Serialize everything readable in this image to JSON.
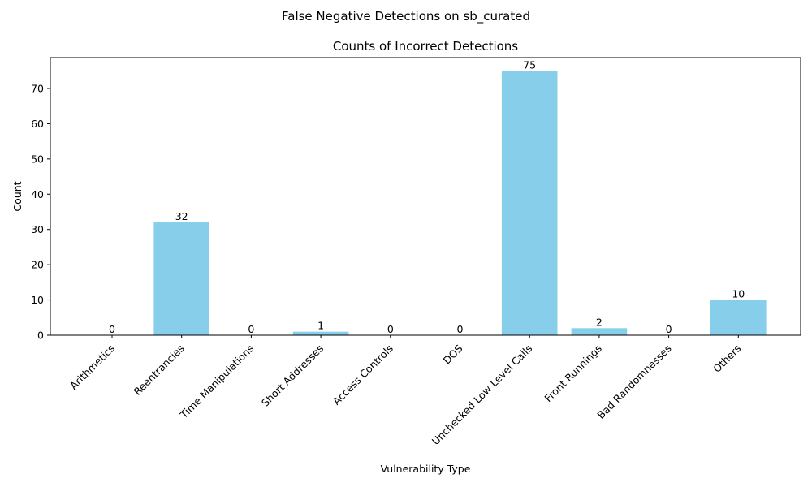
{
  "figure": {
    "suptitle": "False Negative Detections on sb_curated"
  },
  "chart_data": {
    "type": "bar",
    "title": "Counts of Incorrect Detections",
    "xlabel": "Vulnerability Type",
    "ylabel": "Count",
    "categories": [
      "Arithmetics",
      "Reentrancies",
      "Time Manipulations",
      "Short Addresses",
      "Access Controls",
      "DOS",
      "Unchecked Low Level Calls",
      "Front Runnings",
      "Bad Randomnesses",
      "Others"
    ],
    "values": [
      0,
      32,
      0,
      1,
      0,
      0,
      75,
      2,
      0,
      10
    ],
    "ylim": [
      0,
      78.75
    ],
    "yticks": [
      0,
      10,
      20,
      30,
      40,
      50,
      60,
      70
    ],
    "bar_color": "#87ceeb",
    "grid": false,
    "legend": "none"
  }
}
